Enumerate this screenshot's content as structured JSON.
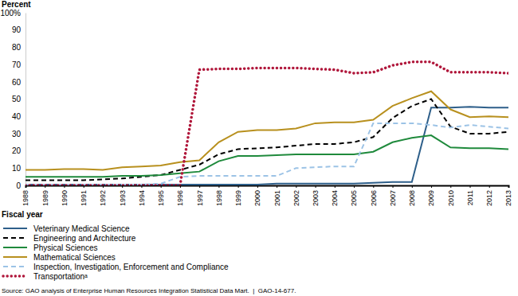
{
  "chart_data": {
    "type": "line",
    "y_label": "Percent",
    "x_label": "Fiscal year",
    "annotations": [
      "Source: GAO analysis of Enterprise Human Resources Integration Statistical Data Mart.  |  GAO-14-677."
    ],
    "x": [
      1988,
      1989,
      1990,
      1991,
      1992,
      1993,
      1994,
      1995,
      1996,
      1997,
      1998,
      1999,
      2000,
      2001,
      2002,
      2003,
      2004,
      2005,
      2006,
      2007,
      2008,
      2009,
      2010,
      2011,
      2012,
      2013
    ],
    "xlim": [
      1988,
      2013
    ],
    "xticks": [
      1988,
      1989,
      1990,
      1991,
      1992,
      1993,
      1994,
      1995,
      1996,
      1997,
      1998,
      1999,
      2000,
      2001,
      2002,
      2003,
      2004,
      2005,
      2006,
      2007,
      2008,
      2009,
      2010,
      2011,
      2012,
      2013
    ],
    "ylim": [
      0,
      100
    ],
    "yticks": [
      0,
      10,
      20,
      30,
      40,
      50,
      60,
      70,
      80,
      90,
      {
        "value": 100,
        "label": "100%"
      }
    ],
    "grid": false,
    "series": [
      {
        "name": "Veterinary Medical Science",
        "color": "#2e5f8a",
        "line_style": "solid",
        "values": [
          0.5,
          0.5,
          0.5,
          0.5,
          0.5,
          0.5,
          0.5,
          0.5,
          0.5,
          0.5,
          0.5,
          0.5,
          0.5,
          1,
          1,
          1,
          1,
          1,
          1.5,
          2,
          2,
          45,
          45,
          45.5,
          45,
          45
        ]
      },
      {
        "name": "Engineering and Architecture",
        "color": "#000000",
        "line_style": "dashed",
        "values": [
          3,
          3,
          3,
          3,
          3.5,
          4,
          5,
          6,
          9,
          12,
          18,
          21,
          21.5,
          22,
          23,
          24,
          24,
          25,
          28,
          39,
          46,
          50,
          34,
          30,
          30,
          31
        ]
      },
      {
        "name": "Physical Sciences",
        "color": "#1f8a3c",
        "line_style": "solid",
        "values": [
          5,
          5,
          5,
          5,
          5,
          5.5,
          5.5,
          6,
          7,
          8,
          14,
          17,
          17,
          17.5,
          18,
          18,
          18,
          18,
          19.5,
          25,
          27.5,
          29,
          22,
          21.5,
          21.5,
          21
        ]
      },
      {
        "name": "Mathematical Sciences",
        "color": "#b8901e",
        "line_style": "solid",
        "values": [
          9,
          9,
          9.5,
          9.5,
          9,
          10.5,
          11,
          11.5,
          13.5,
          14.5,
          25,
          31,
          32,
          32,
          33,
          36,
          36.5,
          36.5,
          38,
          46,
          50.5,
          54.5,
          44,
          39.5,
          40,
          39.5
        ]
      },
      {
        "name": "Inspection, Investigation, Enforcement and Compliance",
        "color": "#9cc3e6",
        "line_style": "dashed",
        "values": [
          0.5,
          0.5,
          0.5,
          0.5,
          0.5,
          0.5,
          0.5,
          1,
          5,
          5.5,
          5.5,
          5.5,
          5.5,
          5.5,
          10,
          10.5,
          11,
          11,
          36,
          36,
          36,
          35,
          33.5,
          35,
          34,
          33
        ]
      },
      {
        "name": "Transportationᵃ",
        "color": "#b0173b",
        "line_style": "dotted",
        "values": [
          0,
          0,
          0,
          0,
          0,
          0,
          0,
          0,
          0,
          67,
          67.5,
          67.5,
          68,
          68,
          68,
          67.5,
          67,
          65,
          65.5,
          69.5,
          71.5,
          71.5,
          65.5,
          65.5,
          65.5,
          65
        ]
      }
    ]
  }
}
